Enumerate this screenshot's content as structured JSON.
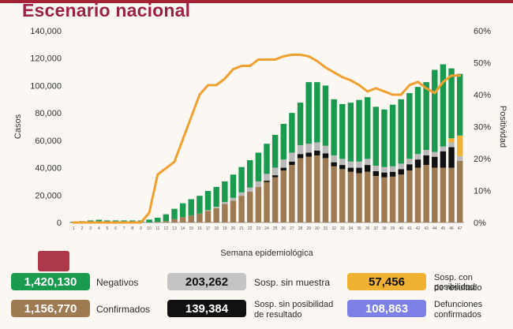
{
  "title": "Escenario nacional",
  "chart_data": {
    "type": "bar",
    "xlabel": "Semana epidemiológica",
    "ylabel": "Casos",
    "y2label": "Positividad",
    "ylim": [
      0,
      140000
    ],
    "y2lim": [
      0,
      60
    ],
    "yticks": [
      "0",
      "20,000",
      "40,000",
      "60,000",
      "80,000",
      "100,000",
      "120,000",
      "140,000"
    ],
    "y2ticks": [
      "0%",
      "10%",
      "20%",
      "30%",
      "40%",
      "50%",
      "60%"
    ],
    "categories": [
      "1",
      "2",
      "3",
      "4",
      "5",
      "6",
      "7",
      "8",
      "9",
      "10",
      "11",
      "12",
      "13",
      "14",
      "15",
      "16",
      "17",
      "18",
      "19",
      "20",
      "21",
      "22",
      "23",
      "24",
      "25",
      "26",
      "27",
      "28",
      "29",
      "30",
      "31",
      "32",
      "33",
      "34",
      "35",
      "36",
      "37",
      "38",
      "39",
      "40",
      "41",
      "42",
      "43",
      "44",
      "45",
      "46",
      "47"
    ],
    "series": [
      {
        "name": "Confirmados",
        "color": "#9d7a52",
        "values": [
          0,
          0,
          0,
          0,
          0,
          0,
          0,
          0,
          0,
          100,
          500,
          1000,
          2500,
          4000,
          5000,
          6500,
          8500,
          10500,
          13500,
          16000,
          19500,
          22500,
          26000,
          29500,
          33000,
          38000,
          42000,
          47000,
          48000,
          49000,
          47000,
          41000,
          39000,
          37000,
          36000,
          37000,
          34000,
          33000,
          33500,
          35000,
          38000,
          40000,
          42000,
          40000,
          40000,
          40000,
          45000
        ]
      },
      {
        "name": "Sosp. sin posibilidad de resultado",
        "color": "#111111",
        "values": [
          0,
          0,
          0,
          0,
          0,
          0,
          0,
          0,
          0,
          0,
          0,
          0,
          0,
          0,
          0,
          0,
          0,
          0,
          0,
          0,
          0,
          0,
          0,
          1000,
          1500,
          2000,
          2500,
          3000,
          3000,
          3500,
          3500,
          3000,
          3000,
          3000,
          4000,
          5000,
          3500,
          3500,
          3500,
          4000,
          4500,
          6000,
          7000,
          8000,
          12000,
          15000,
          0
        ]
      },
      {
        "name": "Sosp. sin muestra",
        "color": "#b9b9b9",
        "values": [
          0,
          0,
          0,
          0,
          0,
          0,
          0,
          0,
          0,
          0,
          0,
          0,
          0,
          0,
          0,
          0,
          500,
          1000,
          1500,
          2000,
          2500,
          3000,
          4000,
          5000,
          5500,
          6000,
          6500,
          6500,
          6500,
          6000,
          5500,
          5000,
          4500,
          4500,
          4500,
          4500,
          4000,
          4000,
          4000,
          4000,
          4000,
          4000,
          4000,
          3500,
          3500,
          3500,
          3500
        ]
      },
      {
        "name": "Sosp. con posibilidad de resultado",
        "color": "#f0b233",
        "values": [
          0,
          0,
          0,
          0,
          0,
          0,
          0,
          0,
          0,
          0,
          0,
          0,
          0,
          0,
          0,
          0,
          0,
          0,
          0,
          0,
          0,
          0,
          0,
          0,
          0,
          0,
          0,
          0,
          0,
          0,
          0,
          0,
          0,
          0,
          0,
          0,
          0,
          0,
          0,
          0,
          0,
          0,
          0,
          0,
          0,
          3000,
          15000
        ]
      },
      {
        "name": "Negativos",
        "color": "#1a9a4f",
        "values": [
          500,
          1000,
          1500,
          2000,
          1500,
          1500,
          1500,
          1500,
          1500,
          2000,
          3000,
          5000,
          7500,
          10000,
          12000,
          13000,
          14000,
          14500,
          15000,
          17000,
          18500,
          20000,
          21000,
          22000,
          24000,
          26000,
          29000,
          31000,
          45000,
          44000,
          44000,
          41000,
          40000,
          43000,
          45000,
          45000,
          43000,
          42000,
          45000,
          47000,
          48000,
          49000,
          49500,
          60000,
          60000,
          51000,
          45000
        ]
      },
      {
        "name": "Positividad",
        "color": "#f0a030",
        "type": "line",
        "axis": "right",
        "values": [
          0,
          0,
          0,
          0,
          0,
          0,
          0,
          0,
          0,
          3,
          15,
          17,
          19,
          26,
          33,
          40,
          43,
          43,
          45,
          48,
          49,
          49,
          51,
          51,
          51,
          52,
          52.5,
          52.5,
          52,
          50.5,
          48.5,
          47,
          45.5,
          44.5,
          43,
          41,
          42,
          41,
          40,
          40,
          43,
          44,
          42,
          40.5,
          44,
          46,
          46
        ]
      }
    ]
  },
  "legend": [
    {
      "value": "1,420,130",
      "label": "Negativos",
      "color": "#1a9a4f",
      "text_color": "#ffffff"
    },
    {
      "value": "203,262",
      "label": "Sosp. sin muestra",
      "color": "#c4c4c4",
      "text_color": "#111111"
    },
    {
      "value": "57,456",
      "label1": "Sosp. con posibilidad",
      "label2": "de resultado",
      "color": "#f0b233",
      "text_color": "#111111"
    },
    {
      "value": "1,156,770",
      "label": "Confirmados",
      "color": "#9d7a52",
      "text_color": "#ffffff"
    },
    {
      "value": "139,384",
      "label1": "Sosp. sin posibilidad",
      "label2": "de resultado",
      "color": "#111111",
      "text_color": "#ffffff"
    },
    {
      "value": "108,863",
      "label1": "Defunciones",
      "label2": "confirmados",
      "color": "#7b7fe6",
      "text_color": "#ffffff"
    }
  ]
}
